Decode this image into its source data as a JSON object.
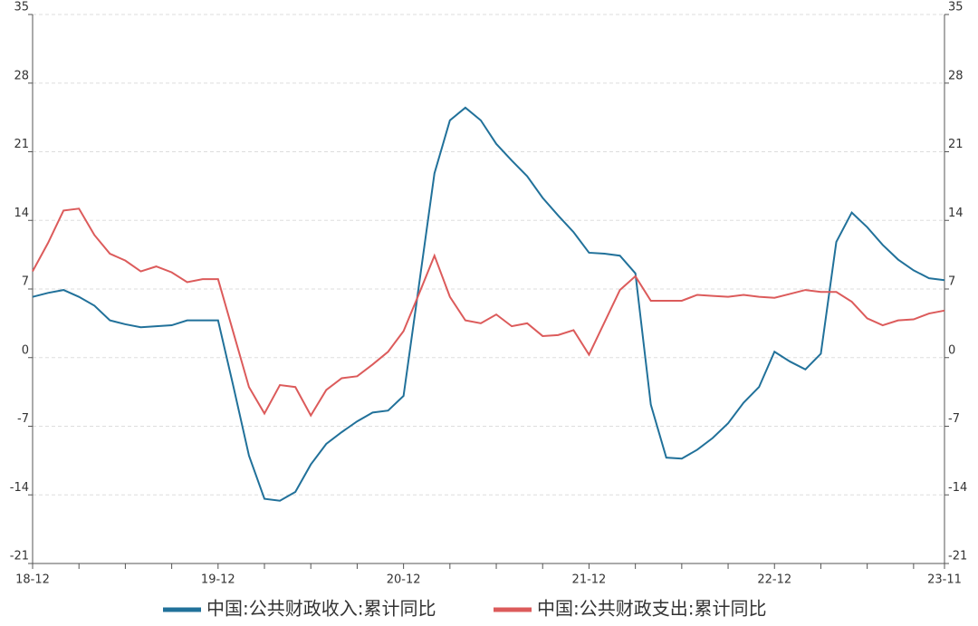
{
  "chart_data": {
    "type": "line",
    "categories": [
      "18-12",
      null,
      null,
      null,
      null,
      null,
      null,
      null,
      null,
      null,
      null,
      null,
      "19-12",
      null,
      null,
      null,
      null,
      null,
      null,
      null,
      null,
      null,
      null,
      null,
      "20-12",
      null,
      null,
      null,
      null,
      null,
      null,
      null,
      null,
      null,
      null,
      null,
      "21-12",
      null,
      null,
      null,
      null,
      null,
      null,
      null,
      null,
      null,
      null,
      null,
      "22-12",
      null,
      null,
      null,
      null,
      null,
      null,
      null,
      null,
      null,
      null,
      "23-11"
    ],
    "series": [
      {
        "name": "中国:公共财政收入:累计同比",
        "color": "#21719a",
        "values": [
          6.2,
          6.6,
          6.9,
          6.2,
          5.3,
          3.8,
          3.4,
          3.1,
          3.2,
          3.3,
          3.8,
          3.8,
          3.8,
          -3.0,
          -10.0,
          -14.4,
          -14.6,
          -13.7,
          -10.9,
          -8.8,
          -7.6,
          -6.5,
          -5.6,
          -5.4,
          -3.9,
          7.4,
          18.8,
          24.2,
          25.5,
          24.2,
          21.8,
          20.1,
          18.5,
          16.3,
          14.5,
          12.8,
          10.7,
          10.6,
          10.4,
          8.6,
          -4.8,
          -10.2,
          -10.3,
          -9.4,
          -8.2,
          -6.7,
          -4.6,
          -3.0,
          0.6,
          -0.4,
          -1.2,
          0.4,
          11.8,
          14.8,
          13.3,
          11.5,
          10.0,
          8.9,
          8.1,
          7.9
        ]
      },
      {
        "name": "中国:公共财政支出:累计同比",
        "color": "#dc5b5b",
        "values": [
          8.8,
          11.7,
          15.0,
          15.2,
          12.5,
          10.6,
          9.9,
          8.8,
          9.3,
          8.7,
          7.7,
          8.0,
          8.0,
          2.5,
          -3.0,
          -5.7,
          -2.8,
          -3.0,
          -5.9,
          -3.3,
          -2.1,
          -1.9,
          -0.7,
          0.6,
          2.7,
          6.5,
          10.4,
          6.2,
          3.8,
          3.5,
          4.4,
          3.2,
          3.5,
          2.2,
          2.3,
          2.8,
          0.3,
          3.6,
          6.9,
          8.3,
          5.8,
          5.8,
          5.8,
          6.4,
          6.3,
          6.2,
          6.4,
          6.2,
          6.1,
          6.5,
          6.9,
          6.7,
          6.7,
          5.7,
          4.0,
          3.3,
          3.8,
          3.9,
          4.5,
          4.8
        ]
      }
    ],
    "ylim": [
      -21,
      35
    ],
    "yticks": [
      -21,
      -14,
      -7,
      0,
      7,
      14,
      21,
      28,
      35
    ],
    "y2lim": [
      -21,
      35
    ],
    "y2ticks": [
      -21,
      -14,
      -7,
      0,
      7,
      14,
      21,
      28,
      35
    ],
    "grid": true
  }
}
